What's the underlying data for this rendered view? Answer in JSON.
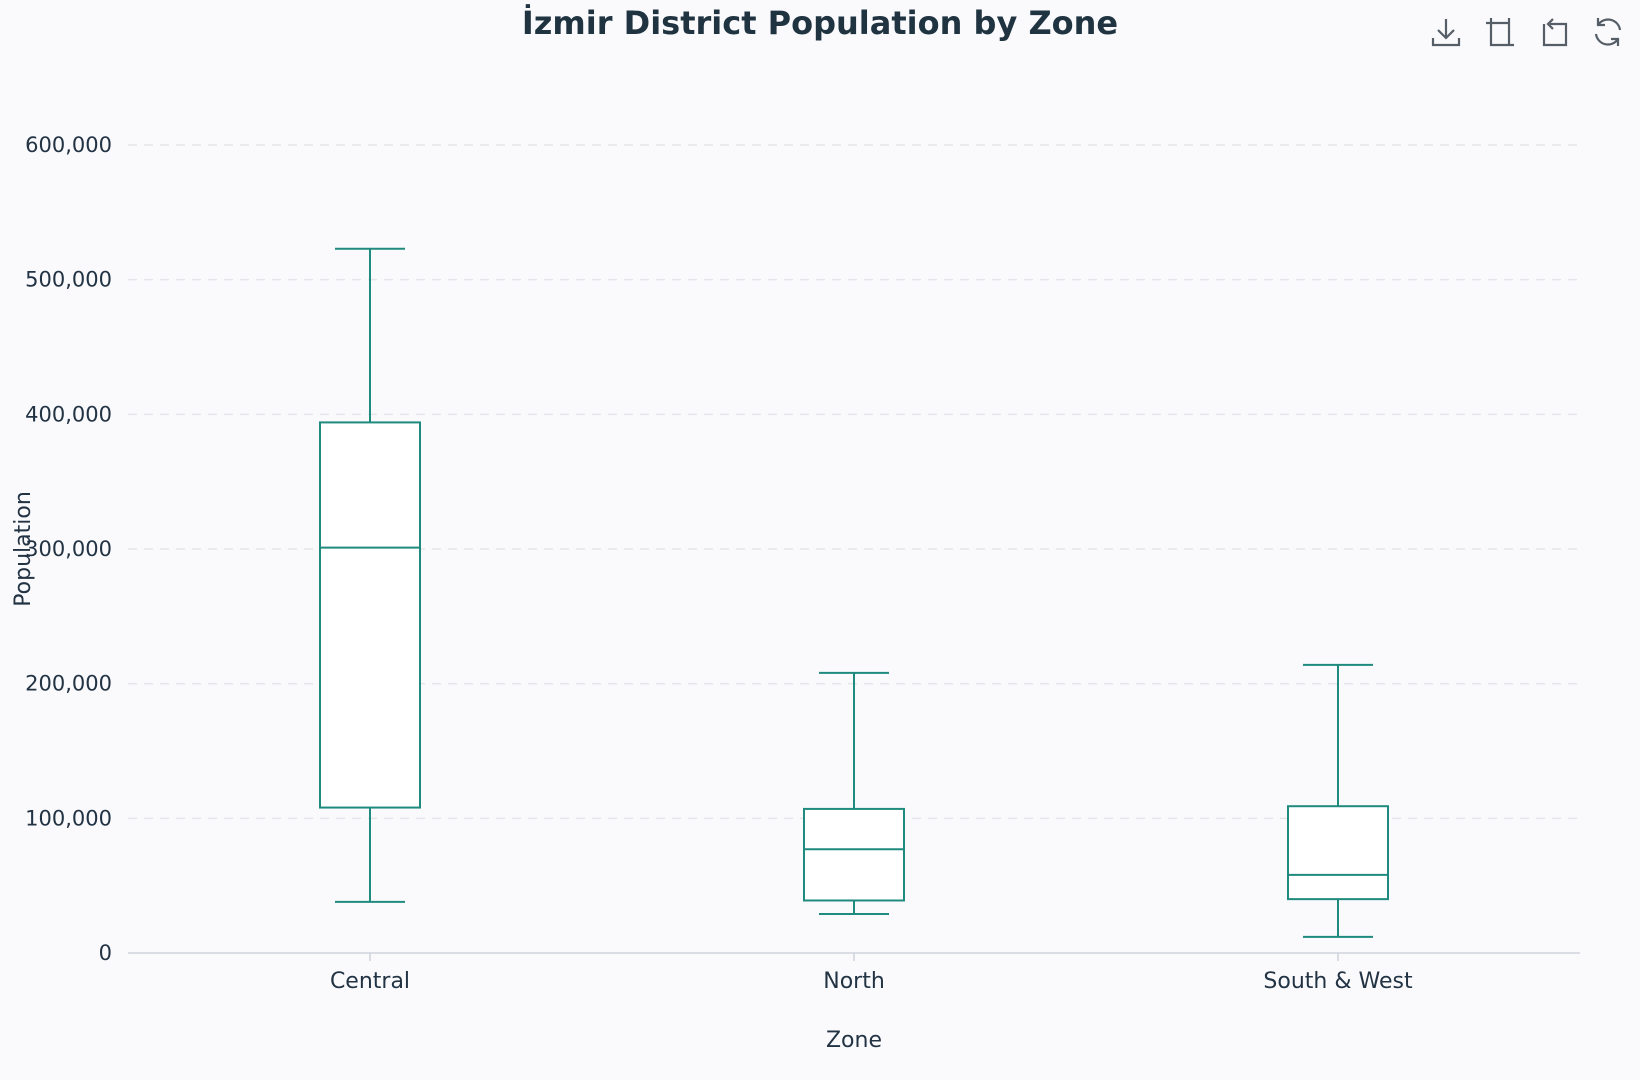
{
  "toolbar": {
    "icons": [
      "download-icon",
      "zoom-select-icon",
      "zoom-reset-icon",
      "restore-icon"
    ]
  },
  "chart_data": {
    "type": "boxplot",
    "title": "İzmir District Population by Zone",
    "xlabel": "Zone",
    "ylabel": "Population",
    "ylim": [
      0,
      600000
    ],
    "yticks": [
      0,
      100000,
      200000,
      300000,
      400000,
      500000,
      600000
    ],
    "ytick_labels": [
      "0",
      "100,000",
      "200,000",
      "300,000",
      "400,000",
      "500,000",
      "600,000"
    ],
    "grid": true,
    "categories": [
      "Central",
      "North",
      "South & West"
    ],
    "boxes": [
      {
        "category": "Central",
        "min": 38000,
        "q1": 108000,
        "median": 301000,
        "q3": 394000,
        "max": 523000
      },
      {
        "category": "North",
        "min": 29000,
        "q1": 39000,
        "median": 77000,
        "q3": 107000,
        "max": 208000
      },
      {
        "category": "South & West",
        "min": 12000,
        "q1": 40000,
        "median": 58000,
        "q3": 109000,
        "max": 214000
      }
    ],
    "colors": {
      "box_stroke": "#1f8a7e",
      "box_fill": "#ffffff",
      "grid": "#e6e6ea",
      "axis": "#cfd3dc",
      "text": "#223344"
    }
  }
}
